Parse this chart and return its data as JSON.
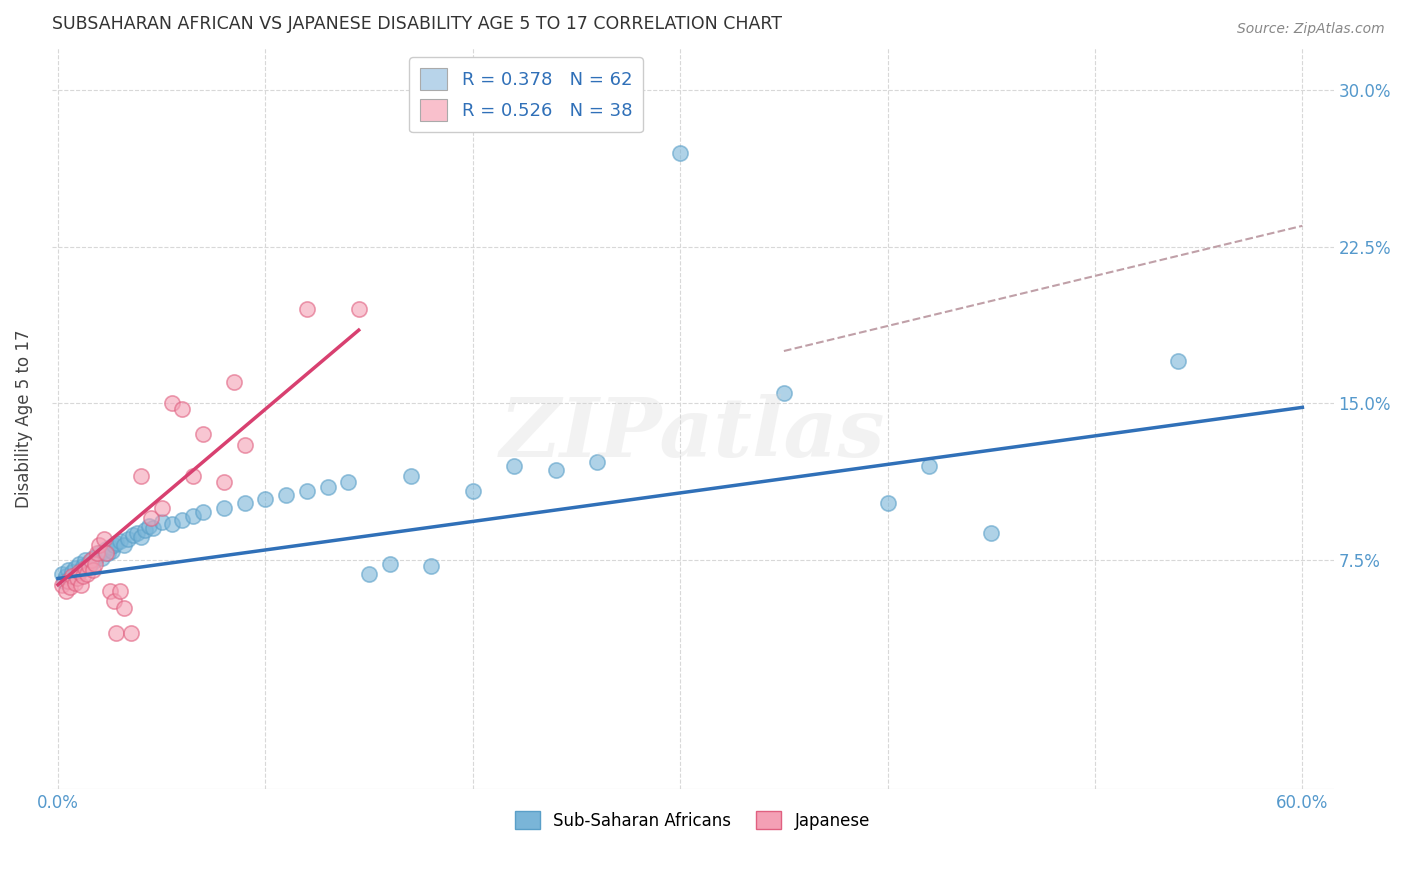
{
  "title": "SUBSAHARAN AFRICAN VS JAPANESE DISABILITY AGE 5 TO 17 CORRELATION CHART",
  "source": "Source: ZipAtlas.com",
  "ylabel": "Disability Age 5 to 17",
  "xtick_labels": [
    "0.0%",
    "60.0%"
  ],
  "xtick_vals": [
    0.0,
    0.6
  ],
  "ytick_labels": [
    "7.5%",
    "15.0%",
    "22.5%",
    "30.0%"
  ],
  "ytick_vals": [
    0.075,
    0.15,
    0.225,
    0.3
  ],
  "xlim": [
    -0.003,
    0.615
  ],
  "ylim": [
    -0.035,
    0.32
  ],
  "legend_entries": [
    {
      "label": "R = 0.378   N = 62",
      "facecolor": "#b8d4ea"
    },
    {
      "label": "R = 0.526   N = 38",
      "facecolor": "#f9c0cc"
    }
  ],
  "watermark": "ZIPatlas",
  "blue_dot_color": "#7ab5d8",
  "blue_dot_edge": "#5a9fc8",
  "pink_dot_color": "#f4a0b5",
  "pink_dot_edge": "#e06080",
  "blue_line_color": "#3070b8",
  "pink_line_color": "#d84070",
  "dashed_line_color": "#c0a0a8",
  "blue_scatter": [
    [
      0.002,
      0.068
    ],
    [
      0.003,
      0.065
    ],
    [
      0.004,
      0.067
    ],
    [
      0.005,
      0.07
    ],
    [
      0.006,
      0.066
    ],
    [
      0.007,
      0.069
    ],
    [
      0.008,
      0.071
    ],
    [
      0.009,
      0.068
    ],
    [
      0.01,
      0.073
    ],
    [
      0.011,
      0.07
    ],
    [
      0.012,
      0.072
    ],
    [
      0.013,
      0.075
    ],
    [
      0.014,
      0.071
    ],
    [
      0.015,
      0.074
    ],
    [
      0.016,
      0.073
    ],
    [
      0.017,
      0.076
    ],
    [
      0.018,
      0.075
    ],
    [
      0.019,
      0.077
    ],
    [
      0.02,
      0.078
    ],
    [
      0.021,
      0.076
    ],
    [
      0.022,
      0.079
    ],
    [
      0.023,
      0.08
    ],
    [
      0.024,
      0.078
    ],
    [
      0.025,
      0.081
    ],
    [
      0.026,
      0.079
    ],
    [
      0.027,
      0.082
    ],
    [
      0.028,
      0.083
    ],
    [
      0.03,
      0.084
    ],
    [
      0.032,
      0.082
    ],
    [
      0.034,
      0.085
    ],
    [
      0.036,
      0.087
    ],
    [
      0.038,
      0.088
    ],
    [
      0.04,
      0.086
    ],
    [
      0.042,
      0.089
    ],
    [
      0.044,
      0.091
    ],
    [
      0.046,
      0.09
    ],
    [
      0.05,
      0.093
    ],
    [
      0.055,
      0.092
    ],
    [
      0.06,
      0.094
    ],
    [
      0.065,
      0.096
    ],
    [
      0.07,
      0.098
    ],
    [
      0.08,
      0.1
    ],
    [
      0.09,
      0.102
    ],
    [
      0.1,
      0.104
    ],
    [
      0.11,
      0.106
    ],
    [
      0.12,
      0.108
    ],
    [
      0.13,
      0.11
    ],
    [
      0.14,
      0.112
    ],
    [
      0.15,
      0.068
    ],
    [
      0.16,
      0.073
    ],
    [
      0.17,
      0.115
    ],
    [
      0.18,
      0.072
    ],
    [
      0.2,
      0.108
    ],
    [
      0.22,
      0.12
    ],
    [
      0.24,
      0.118
    ],
    [
      0.26,
      0.122
    ],
    [
      0.3,
      0.27
    ],
    [
      0.35,
      0.155
    ],
    [
      0.4,
      0.102
    ],
    [
      0.42,
      0.12
    ],
    [
      0.45,
      0.088
    ],
    [
      0.54,
      0.17
    ]
  ],
  "pink_scatter": [
    [
      0.002,
      0.063
    ],
    [
      0.004,
      0.06
    ],
    [
      0.005,
      0.065
    ],
    [
      0.006,
      0.062
    ],
    [
      0.007,
      0.067
    ],
    [
      0.008,
      0.064
    ],
    [
      0.009,
      0.066
    ],
    [
      0.01,
      0.069
    ],
    [
      0.011,
      0.063
    ],
    [
      0.012,
      0.067
    ],
    [
      0.013,
      0.071
    ],
    [
      0.014,
      0.068
    ],
    [
      0.015,
      0.072
    ],
    [
      0.016,
      0.075
    ],
    [
      0.017,
      0.07
    ],
    [
      0.018,
      0.073
    ],
    [
      0.019,
      0.078
    ],
    [
      0.02,
      0.082
    ],
    [
      0.022,
      0.085
    ],
    [
      0.023,
      0.078
    ],
    [
      0.025,
      0.06
    ],
    [
      0.027,
      0.055
    ],
    [
      0.028,
      0.04
    ],
    [
      0.03,
      0.06
    ],
    [
      0.032,
      0.052
    ],
    [
      0.035,
      0.04
    ],
    [
      0.04,
      0.115
    ],
    [
      0.045,
      0.095
    ],
    [
      0.05,
      0.1
    ],
    [
      0.055,
      0.15
    ],
    [
      0.06,
      0.147
    ],
    [
      0.065,
      0.115
    ],
    [
      0.07,
      0.135
    ],
    [
      0.08,
      0.112
    ],
    [
      0.085,
      0.16
    ],
    [
      0.09,
      0.13
    ],
    [
      0.12,
      0.195
    ],
    [
      0.145,
      0.195
    ]
  ],
  "blue_line_pts": [
    [
      0.0,
      0.066
    ],
    [
      0.6,
      0.148
    ]
  ],
  "pink_line_pts": [
    [
      0.0,
      0.063
    ],
    [
      0.145,
      0.185
    ]
  ],
  "dashed_line_pts": [
    [
      0.35,
      0.175
    ],
    [
      0.6,
      0.235
    ]
  ],
  "background_color": "#ffffff",
  "grid_color": "#d8d8d8",
  "title_color": "#333333",
  "axis_label_color": "#444444",
  "tick_color": "#5599cc"
}
